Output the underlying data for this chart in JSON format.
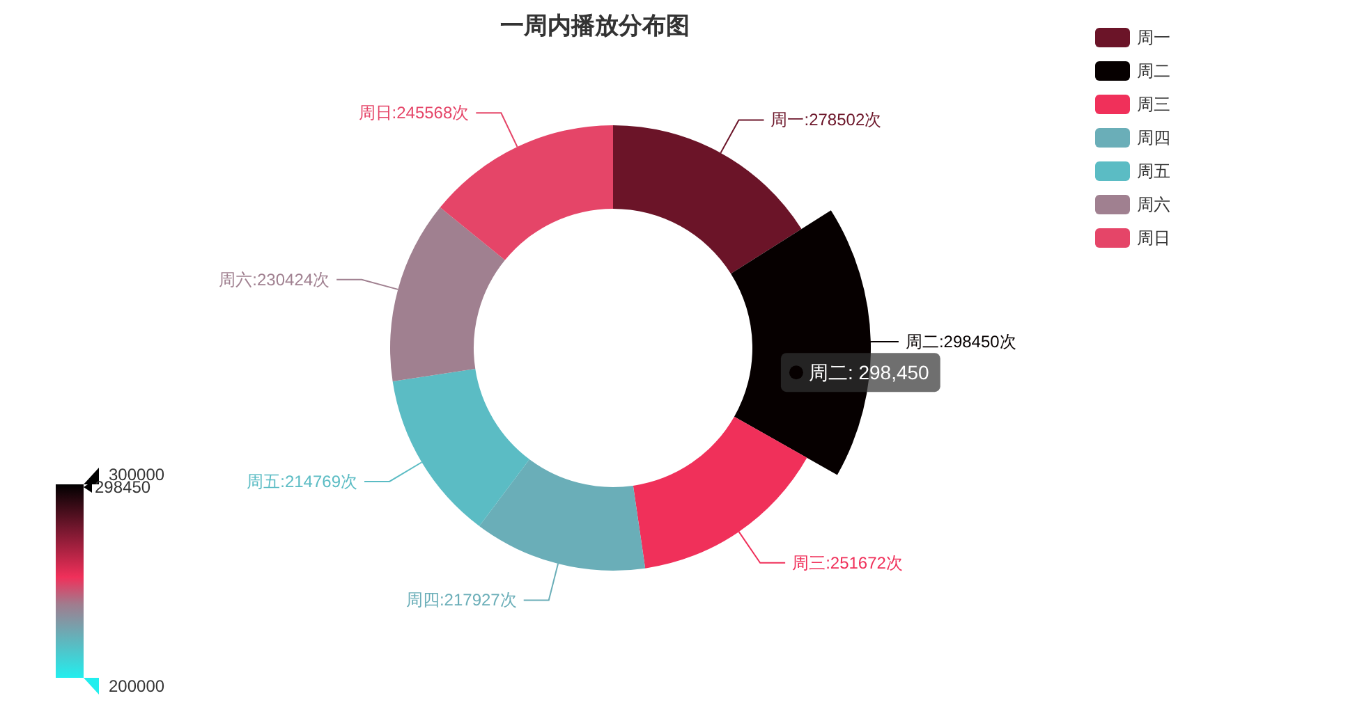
{
  "chart_data": {
    "type": "donut",
    "title": "一周内播放分布图",
    "categories": [
      "周一",
      "周二",
      "周三",
      "周四",
      "周五",
      "周六",
      "周日"
    ],
    "values": [
      278502,
      298450,
      251672,
      217927,
      214769,
      230424,
      245568
    ],
    "colors": [
      "#6b1428",
      "#060000",
      "#f0305a",
      "#6aaeb8",
      "#5bbcc4",
      "#a08090",
      "#e54568"
    ],
    "value_labels": [
      "周一:278502次",
      "周二:298450次",
      "周三:251672次",
      "周四:217927次",
      "周五:214769次",
      "周六:230424次",
      "周日:245568次"
    ],
    "legend": "top right",
    "annotations": [
      {
        "text": "周二: 298,450",
        "x": "周二"
      },
      "300000",
      "298450",
      "200000"
    ]
  }
}
